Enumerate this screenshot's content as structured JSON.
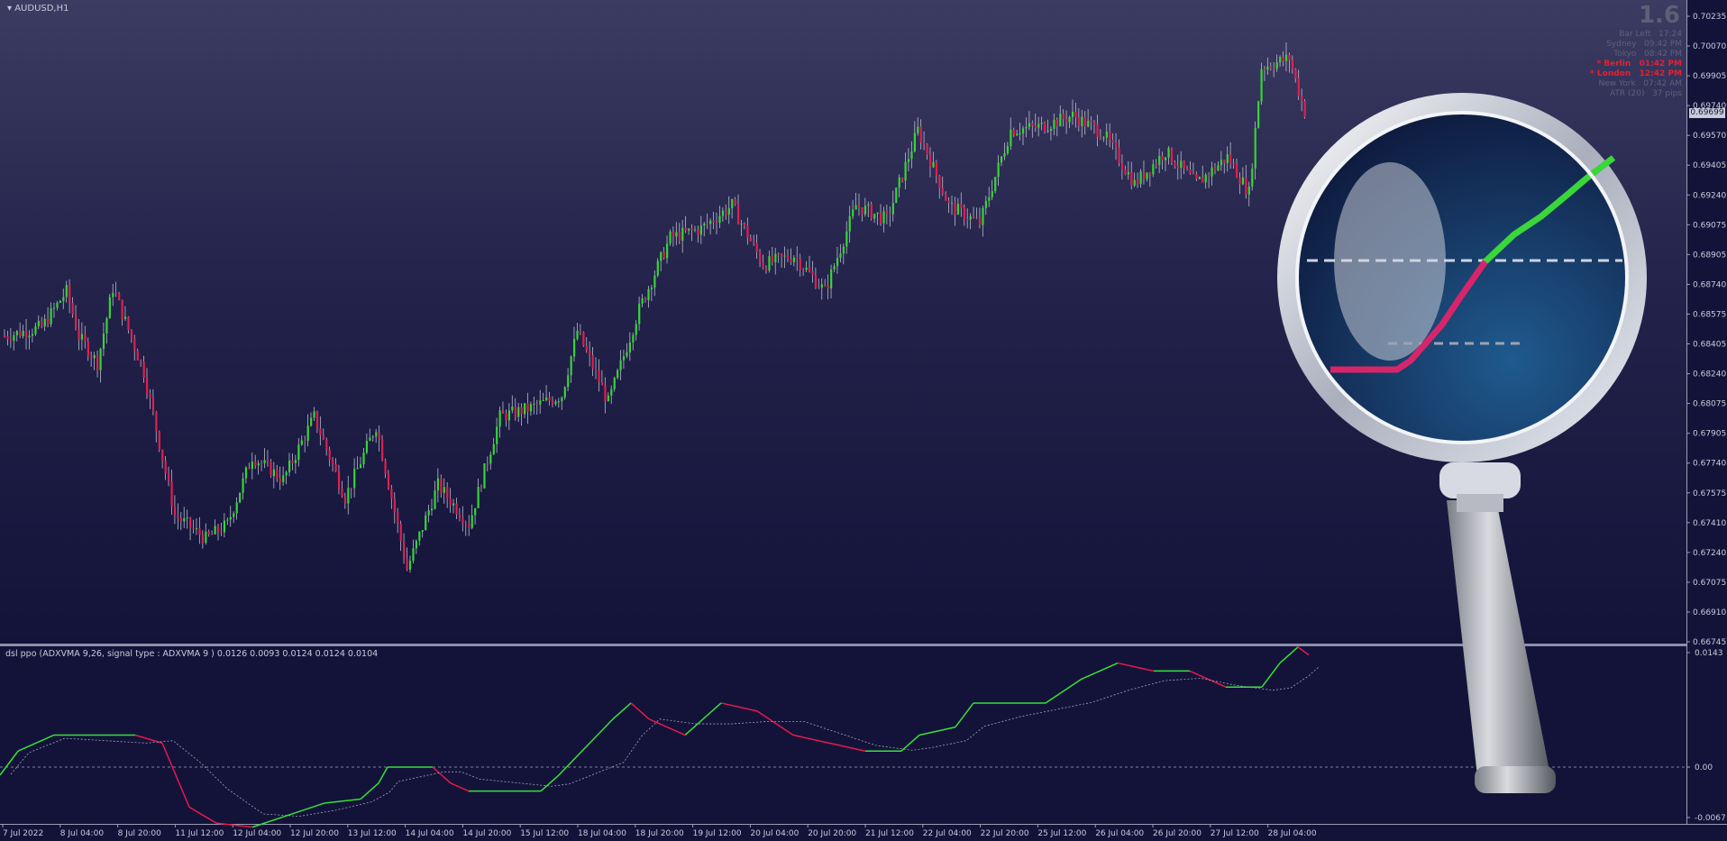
{
  "window": {
    "symbol": "AUDUSD,H1"
  },
  "spread_display": "1.6",
  "info_panel": [
    {
      "label": "Bar Left",
      "value": "17:24",
      "active": false
    },
    {
      "label": "Sydney",
      "value": "09:42 PM",
      "active": false
    },
    {
      "label": "Tokyo",
      "value": "08:42 PM",
      "active": false
    },
    {
      "label": "* Berlin",
      "value": "01:42 PM",
      "active": true
    },
    {
      "label": "* London",
      "value": "12:42 PM",
      "active": true
    },
    {
      "label": "New York",
      "value": "07:42 AM",
      "active": false
    },
    {
      "label": "ATR (20)",
      "value": "37 pips",
      "active": false
    }
  ],
  "current_price": "0.69699",
  "price_axis": [
    "0.70235",
    "0.70070",
    "0.69905",
    "0.69740",
    "0.69570",
    "0.69405",
    "0.69240",
    "0.69075",
    "0.68905",
    "0.68740",
    "0.68575",
    "0.68405",
    "0.68240",
    "0.68075",
    "0.67905",
    "0.67740",
    "0.67575",
    "0.67410",
    "0.67240",
    "0.67075",
    "0.66910",
    "0.66745"
  ],
  "indicator": {
    "title": "dsl ppo (ADXVMA 9,26, signal type : ADXVMA  9 ) 0.0126 0.0093 0.0124 0.0124 0.0104",
    "axis": [
      "0.0143",
      "0.00",
      "-0.0067"
    ]
  },
  "time_axis": [
    "7 Jul 2022",
    "8 Jul 04:00",
    "8 Jul 20:00",
    "11 Jul 12:00",
    "12 Jul 04:00",
    "12 Jul 20:00",
    "13 Jul 12:00",
    "14 Jul 04:00",
    "14 Jul 20:00",
    "15 Jul 12:00",
    "18 Jul 04:00",
    "18 Jul 20:00",
    "19 Jul 12:00",
    "20 Jul 04:00",
    "20 Jul 20:00",
    "21 Jul 12:00",
    "22 Jul 04:00",
    "22 Jul 20:00",
    "25 Jul 12:00",
    "26 Jul 04:00",
    "26 Jul 20:00",
    "27 Jul 12:00",
    "28 Jul 04:00"
  ],
  "colors": {
    "bull": "#34d634",
    "bear": "#e01f4f",
    "indicator_up": "#38e038",
    "indicator_down": "#e8194a"
  },
  "chart_data": {
    "type": "candlestick",
    "symbol": "AUDUSD",
    "timeframe": "H1",
    "ylim": [
      0.66745,
      0.70235
    ],
    "price_anchors": [
      [
        0,
        0.6845
      ],
      [
        12,
        0.685
      ],
      [
        20,
        0.687
      ],
      [
        24,
        0.6845
      ],
      [
        30,
        0.683
      ],
      [
        35,
        0.6872
      ],
      [
        45,
        0.6825
      ],
      [
        55,
        0.6745
      ],
      [
        65,
        0.6732
      ],
      [
        72,
        0.674
      ],
      [
        80,
        0.6778
      ],
      [
        90,
        0.6765
      ],
      [
        100,
        0.68
      ],
      [
        110,
        0.6755
      ],
      [
        120,
        0.6795
      ],
      [
        130,
        0.6715
      ],
      [
        140,
        0.6762
      ],
      [
        150,
        0.674
      ],
      [
        160,
        0.68
      ],
      [
        170,
        0.6805
      ],
      [
        180,
        0.6812
      ],
      [
        185,
        0.6848
      ],
      [
        195,
        0.6808
      ],
      [
        205,
        0.686
      ],
      [
        215,
        0.69
      ],
      [
        225,
        0.6905
      ],
      [
        235,
        0.6918
      ],
      [
        245,
        0.6885
      ],
      [
        255,
        0.689
      ],
      [
        265,
        0.687
      ],
      [
        275,
        0.6918
      ],
      [
        285,
        0.691
      ],
      [
        295,
        0.696
      ],
      [
        305,
        0.6918
      ],
      [
        315,
        0.6908
      ],
      [
        325,
        0.696
      ],
      [
        335,
        0.6962
      ],
      [
        345,
        0.6968
      ],
      [
        355,
        0.6958
      ],
      [
        365,
        0.693
      ],
      [
        375,
        0.6948
      ],
      [
        385,
        0.693
      ],
      [
        395,
        0.6945
      ],
      [
        402,
        0.6925
      ],
      [
        406,
        0.6995
      ],
      [
        415,
        0.7
      ],
      [
        420,
        0.697
      ]
    ]
  }
}
